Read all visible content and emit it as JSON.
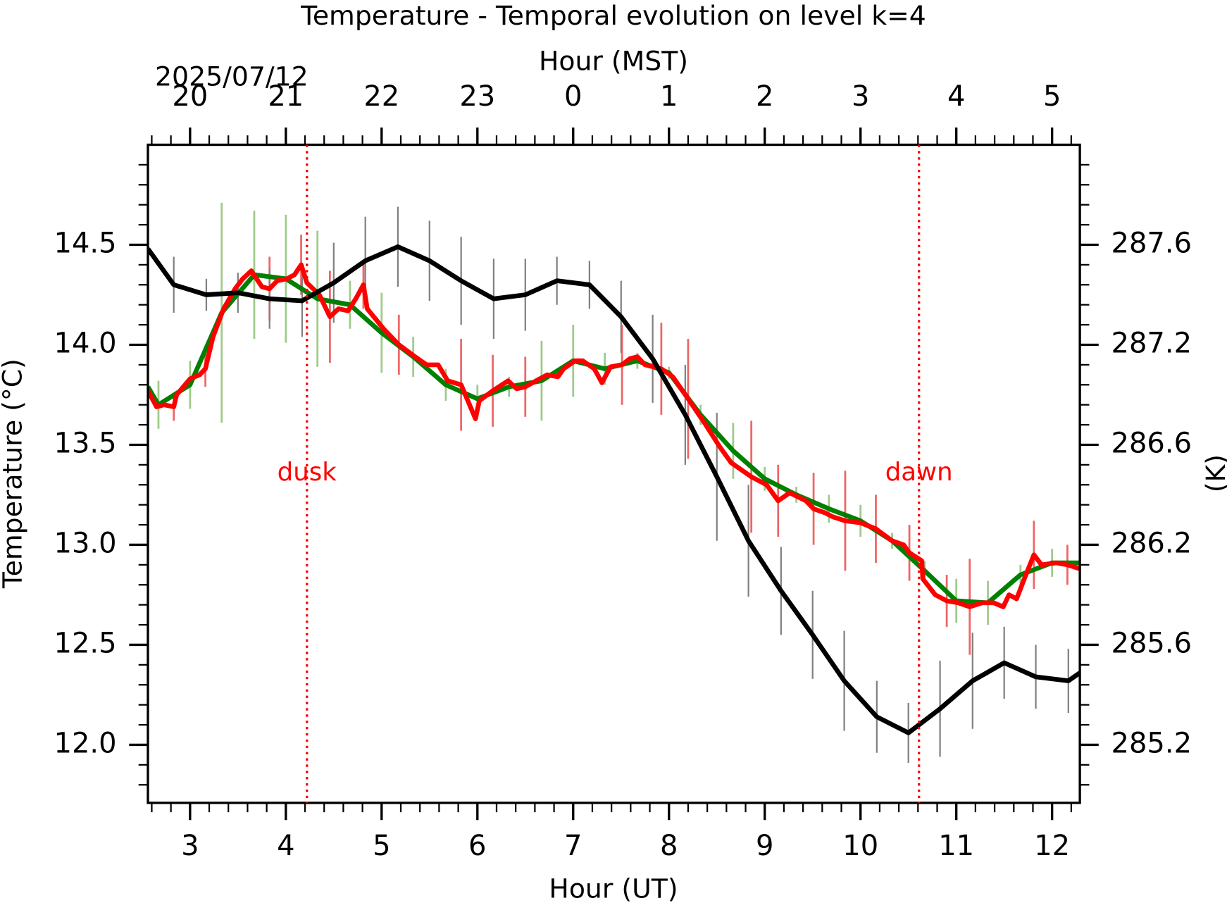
{
  "chart_data": {
    "type": "line",
    "title": "Temperature - Temporal evolution on level k=4",
    "xlabel": "Hour (UT)",
    "x2label": "Hour (MST)",
    "x2date": "2025/07/12",
    "ylabel": "Temperature (°C)",
    "y2label": "(K)",
    "xlim": [
      2.56,
      12.29
    ],
    "ylim": [
      11.71,
      15.0
    ],
    "y2lim": [
      284.86,
      288.15
    ],
    "xticks": [
      3,
      4,
      5,
      6,
      7,
      8,
      9,
      10,
      11,
      12
    ],
    "x2ticks": [
      {
        "value": 3,
        "label": "20"
      },
      {
        "value": 4,
        "label": "21"
      },
      {
        "value": 5,
        "label": "22"
      },
      {
        "value": 6,
        "label": "23"
      },
      {
        "value": 7,
        "label": "0"
      },
      {
        "value": 8,
        "label": "1"
      },
      {
        "value": 9,
        "label": "2"
      },
      {
        "value": 10,
        "label": "3"
      },
      {
        "value": 11,
        "label": "4"
      },
      {
        "value": 12,
        "label": "5"
      }
    ],
    "xminorticks": [
      2.6,
      2.8,
      3.2,
      3.4,
      3.6,
      3.8,
      4.2,
      4.4,
      4.6,
      4.8,
      5.2,
      5.4,
      5.6,
      5.8,
      6.2,
      6.4,
      6.6,
      6.8,
      7.2,
      7.4,
      7.6,
      7.8,
      8.2,
      8.4,
      8.6,
      8.8,
      9.2,
      9.4,
      9.6,
      9.8,
      10.2,
      10.4,
      10.6,
      10.8,
      11.2,
      11.4,
      11.6,
      11.8,
      12.2
    ],
    "yticks": [
      {
        "value": 12,
        "label": "12.0"
      },
      12.5,
      {
        "value": 13,
        "label": "13.0"
      },
      13.5,
      {
        "value": 14,
        "label": "14.0"
      },
      14.5
    ],
    "yminorticks": [
      11.8,
      11.9,
      12.1,
      12.2,
      12.3,
      12.4,
      12.6,
      12.7,
      12.8,
      12.9,
      13.1,
      13.2,
      13.3,
      13.4,
      13.6,
      13.7,
      13.8,
      13.9,
      14.1,
      14.2,
      14.3,
      14.4,
      14.6,
      14.7,
      14.8,
      14.9
    ],
    "y2ticks": [
      {
        "value": 285.15,
        "label": "285.2"
      },
      {
        "value": 285.65,
        "label": "285.6"
      },
      {
        "value": 286.15,
        "label": "286.2"
      },
      {
        "value": 286.65,
        "label": "286.6"
      },
      {
        "value": 287.15,
        "label": "287.2"
      },
      {
        "value": 287.65,
        "label": "287.6"
      }
    ],
    "vlines": [
      {
        "x": 4.22,
        "label": "dusk",
        "color": "#ff0000"
      },
      {
        "x": 10.61,
        "label": "dawn",
        "color": "#ff0000"
      }
    ],
    "series": [
      {
        "color": "#008000",
        "error_color": "#9fcb8a",
        "x": [
          2.56,
          2.67,
          3.0,
          3.33,
          3.67,
          4.0,
          4.33,
          4.67,
          5.0,
          5.33,
          5.67,
          6.0,
          6.33,
          6.67,
          7.0,
          7.33,
          7.67,
          8.0,
          8.33,
          8.67,
          9.0,
          9.33,
          9.67,
          10.0,
          10.33,
          10.67,
          11.0,
          11.33,
          11.67,
          12.0,
          12.29
        ],
        "values": [
          13.79,
          13.7,
          13.8,
          14.16,
          14.35,
          14.33,
          14.23,
          14.2,
          14.06,
          13.94,
          13.8,
          13.73,
          13.79,
          13.82,
          13.92,
          13.88,
          13.92,
          13.86,
          13.65,
          13.47,
          13.33,
          13.25,
          13.18,
          13.12,
          13.02,
          12.87,
          12.72,
          12.71,
          12.85,
          12.91,
          12.91
        ],
        "errors": [
          null,
          0.12,
          0.12,
          0.55,
          0.32,
          0.32,
          0.34,
          0.12,
          0.2,
          0.1,
          0.08,
          0.07,
          0.05,
          0.2,
          0.18,
          0.08,
          0.04,
          0.03,
          0.05,
          0.14,
          0.06,
          0.04,
          0.07,
          0.08,
          0.04,
          0.05,
          0.11,
          0.11,
          0.05,
          0.07,
          null
        ]
      },
      {
        "color": "#ff0000",
        "error_color": "#ee6666",
        "x": [
          2.56,
          2.65,
          2.73,
          2.83,
          2.86,
          3.0,
          3.1,
          3.16,
          3.24,
          3.35,
          3.47,
          3.55,
          3.64,
          3.75,
          3.83,
          3.91,
          4.01,
          4.09,
          4.16,
          4.22,
          4.35,
          4.46,
          4.55,
          4.65,
          4.73,
          4.81,
          4.85,
          5.02,
          5.18,
          5.35,
          5.47,
          5.59,
          5.69,
          5.83,
          5.98,
          6.02,
          6.16,
          6.32,
          6.41,
          6.5,
          6.65,
          6.73,
          6.84,
          6.9,
          7.02,
          7.1,
          7.22,
          7.3,
          7.39,
          7.51,
          7.59,
          7.67,
          7.75,
          7.92,
          8.04,
          8.2,
          8.37,
          8.53,
          8.65,
          8.86,
          9.02,
          9.14,
          9.26,
          9.43,
          9.51,
          9.63,
          9.71,
          9.84,
          10.0,
          10.16,
          10.33,
          10.45,
          10.51,
          10.64,
          10.65,
          10.78,
          10.9,
          11.02,
          11.14,
          11.27,
          11.39,
          11.49,
          11.55,
          11.63,
          11.71,
          11.81,
          11.89,
          12.04,
          12.16,
          12.29
        ],
        "values": [
          13.77,
          13.69,
          13.7,
          13.69,
          13.75,
          13.83,
          13.85,
          13.88,
          14.04,
          14.18,
          14.28,
          14.33,
          14.37,
          14.29,
          14.28,
          14.32,
          14.33,
          14.35,
          14.4,
          14.31,
          14.25,
          14.14,
          14.18,
          14.17,
          14.23,
          14.3,
          14.18,
          14.08,
          14.0,
          13.94,
          13.9,
          13.9,
          13.82,
          13.8,
          13.63,
          13.72,
          13.77,
          13.82,
          13.78,
          13.79,
          13.83,
          13.85,
          13.84,
          13.88,
          13.92,
          13.92,
          13.88,
          13.81,
          13.89,
          13.9,
          13.93,
          13.94,
          13.9,
          13.88,
          13.84,
          13.73,
          13.61,
          13.49,
          13.41,
          13.34,
          13.3,
          13.22,
          13.26,
          13.22,
          13.18,
          13.16,
          13.14,
          13.12,
          13.11,
          13.08,
          13.02,
          13.0,
          12.96,
          12.92,
          12.83,
          12.75,
          12.72,
          12.71,
          12.69,
          12.71,
          12.71,
          12.69,
          12.75,
          12.73,
          12.83,
          12.95,
          12.9,
          12.91,
          12.9,
          12.88
        ],
        "errors": [
          null,
          null,
          null,
          0.07,
          null,
          null,
          null,
          0.09,
          null,
          null,
          null,
          null,
          null,
          null,
          0.16,
          null,
          null,
          null,
          0.15,
          null,
          null,
          0.23,
          null,
          null,
          null,
          0.12,
          null,
          null,
          0.15,
          null,
          null,
          null,
          null,
          0.23,
          null,
          null,
          0.18,
          null,
          null,
          0.15,
          null,
          null,
          null,
          null,
          null,
          null,
          null,
          null,
          null,
          0.2,
          null,
          null,
          null,
          0.23,
          null,
          0.3,
          null,
          null,
          null,
          0.28,
          null,
          0.18,
          null,
          null,
          0.18,
          null,
          null,
          0.25,
          null,
          0.17,
          null,
          null,
          0.14,
          null,
          null,
          null,
          0.13,
          null,
          0.24,
          null,
          null,
          null,
          null,
          null,
          null,
          0.17,
          null,
          null,
          0.1,
          null
        ]
      },
      {
        "color": "#000000",
        "error_color": "#808080",
        "x": [
          2.56,
          2.83,
          3.17,
          3.5,
          3.83,
          4.17,
          4.5,
          4.83,
          5.17,
          5.5,
          5.83,
          6.17,
          6.5,
          6.83,
          7.17,
          7.5,
          7.83,
          8.17,
          8.5,
          8.83,
          9.17,
          9.5,
          9.83,
          10.17,
          10.5,
          10.83,
          11.17,
          11.5,
          11.83,
          12.17,
          12.29
        ],
        "values": [
          14.48,
          14.3,
          14.25,
          14.26,
          14.23,
          14.22,
          14.31,
          14.42,
          14.49,
          14.42,
          14.32,
          14.23,
          14.25,
          14.32,
          14.3,
          14.14,
          13.93,
          13.65,
          13.34,
          13.02,
          12.77,
          12.55,
          12.32,
          12.14,
          12.06,
          12.18,
          12.32,
          12.41,
          12.34,
          12.32,
          12.36
        ],
        "errors": [
          null,
          0.14,
          0.08,
          0.1,
          0.15,
          0.18,
          0.2,
          0.22,
          0.2,
          0.2,
          0.22,
          0.2,
          0.18,
          0.12,
          0.12,
          0.18,
          0.22,
          0.25,
          0.32,
          0.28,
          0.22,
          0.22,
          0.25,
          0.18,
          0.15,
          0.24,
          0.24,
          0.18,
          0.16,
          0.16,
          null
        ]
      }
    ]
  }
}
